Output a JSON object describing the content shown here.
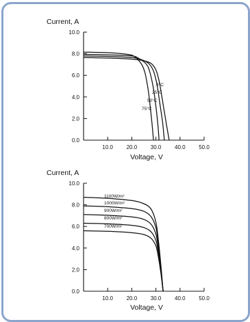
{
  "chart_data": [
    {
      "type": "line",
      "ylabel": "Current, A",
      "xlabel": "Voltage, V",
      "xlim": [
        0,
        50
      ],
      "ylim": [
        0,
        10
      ],
      "x_ticks": [
        "10.0",
        "20.0",
        "30.0",
        "40.0",
        "50.0"
      ],
      "y_ticks": [
        "0.0",
        "2.0",
        "4.0",
        "6.0",
        "8.0",
        "10.0"
      ],
      "grid": false,
      "series": [
        {
          "name": "0°C",
          "x": [
            0,
            10,
            20,
            25,
            28,
            30,
            31.5,
            33,
            34.5,
            35.5
          ],
          "y": [
            7.65,
            7.6,
            7.5,
            7.35,
            7.1,
            6.5,
            5.3,
            3.3,
            1.3,
            0
          ]
        },
        {
          "name": "25°C",
          "x": [
            0,
            10,
            20,
            24,
            27,
            29,
            30.5,
            31.5,
            32.8,
            33.5
          ],
          "y": [
            7.8,
            7.75,
            7.65,
            7.45,
            7.1,
            6.4,
            5.1,
            3.6,
            1.6,
            0
          ]
        },
        {
          "name": "50°C",
          "x": [
            0,
            10,
            20,
            23,
            26,
            27.5,
            28.8,
            29.8,
            30.8,
            31.3
          ],
          "y": [
            7.95,
            7.9,
            7.8,
            7.55,
            7.05,
            6.3,
            5.0,
            3.5,
            1.5,
            0
          ]
        },
        {
          "name": "75°C",
          "x": [
            0,
            10,
            18,
            21,
            24,
            25.5,
            26.7,
            27.5,
            28.4,
            29
          ],
          "y": [
            8.15,
            8.1,
            7.95,
            7.75,
            7.05,
            6.2,
            4.8,
            3.4,
            1.5,
            0
          ]
        }
      ]
    },
    {
      "type": "line",
      "ylabel": "Current, A",
      "xlabel": "Voltage, V",
      "xlim": [
        0,
        50
      ],
      "ylim": [
        0,
        10
      ],
      "x_ticks": [
        "10.0",
        "20.0",
        "30.0",
        "40.0",
        "50.0"
      ],
      "y_ticks": [
        "0.0",
        "2.0",
        "4.0",
        "6.0",
        "8.0",
        "10.0"
      ],
      "grid": false,
      "series": [
        {
          "name": "1100W/m²",
          "x": [
            0,
            10,
            20,
            25,
            28,
            30,
            31,
            32,
            32.6,
            33
          ],
          "y": [
            8.7,
            8.6,
            8.4,
            8.1,
            7.6,
            6.4,
            4.8,
            2.6,
            1.0,
            0
          ]
        },
        {
          "name": "1000W/m²",
          "x": [
            0,
            10,
            20,
            25,
            28,
            30,
            31,
            32,
            32.6,
            33
          ],
          "y": [
            7.9,
            7.82,
            7.65,
            7.4,
            6.9,
            5.9,
            4.4,
            2.4,
            0.9,
            0
          ]
        },
        {
          "name": "900W/m²",
          "x": [
            0,
            10,
            20,
            25,
            28,
            30,
            31,
            32,
            32.6,
            33
          ],
          "y": [
            7.1,
            7.03,
            6.88,
            6.65,
            6.2,
            5.3,
            4.0,
            2.2,
            0.85,
            0
          ]
        },
        {
          "name": "800W/m²",
          "x": [
            0,
            10,
            20,
            25,
            28,
            30,
            31,
            32,
            32.6,
            33
          ],
          "y": [
            6.3,
            6.24,
            6.1,
            5.9,
            5.5,
            4.7,
            3.6,
            2.0,
            0.8,
            0
          ]
        },
        {
          "name": "700W/m²",
          "x": [
            0,
            10,
            20,
            25,
            28,
            30,
            31,
            32,
            32.6,
            33
          ],
          "y": [
            5.6,
            5.55,
            5.42,
            5.25,
            4.9,
            4.2,
            3.2,
            1.8,
            0.7,
            0
          ]
        }
      ]
    }
  ]
}
